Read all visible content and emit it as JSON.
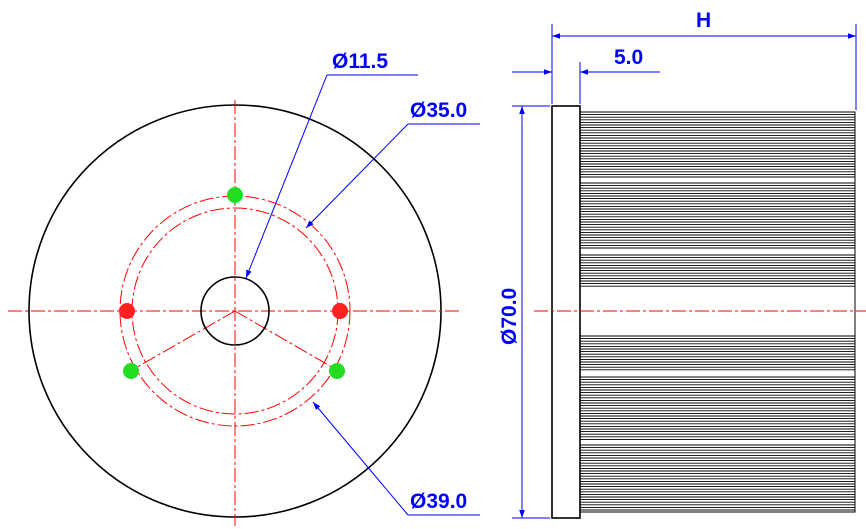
{
  "dimensions": {
    "bore_diameter": "Ø11.5",
    "inner_circle_diameter": "Ø35.0",
    "outer_circle_diameter": "Ø39.0",
    "overall_diameter": "Ø70.0",
    "flange_thickness": "5.0",
    "height": "H"
  },
  "colors": {
    "outline": "#000000",
    "centerline": "#ff0000",
    "dimension": "#0000ff",
    "hole_red": "#ff2020",
    "hole_green": "#22dd22"
  }
}
